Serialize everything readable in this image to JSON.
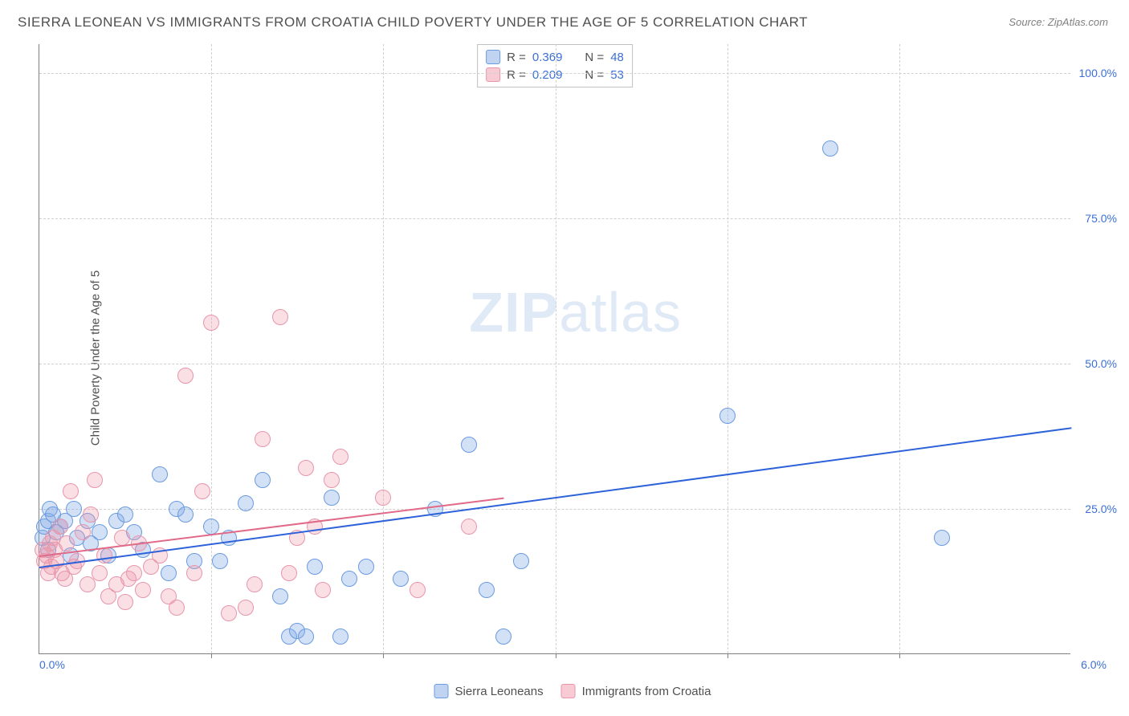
{
  "title": "SIERRA LEONEAN VS IMMIGRANTS FROM CROATIA CHILD POVERTY UNDER THE AGE OF 5 CORRELATION CHART",
  "source_label": "Source:",
  "source_value": "ZipAtlas.com",
  "y_axis_label": "Child Poverty Under the Age of 5",
  "watermark_bold": "ZIP",
  "watermark_rest": "atlas",
  "chart": {
    "type": "scatter",
    "xlim": [
      0,
      6
    ],
    "ylim": [
      0,
      105
    ],
    "x_tick_step": 1,
    "y_ticks": [
      25,
      50,
      75,
      100
    ],
    "y_tick_labels": [
      "25.0%",
      "50.0%",
      "75.0%",
      "100.0%"
    ],
    "x_left_label": "0.0%",
    "x_right_label": "6.0%",
    "background_color": "#ffffff",
    "grid_color": "#d0d0d0",
    "axis_color": "#808080",
    "marker_radius": 10,
    "series": [
      {
        "name": "Sierra Leoneans",
        "color_fill": "rgba(130,170,230,0.35)",
        "color_stroke": "#6a9be0",
        "trend_color": "#2e62d9",
        "R": "0.369",
        "N": "48",
        "trend": {
          "x1": 0,
          "y1": 15,
          "x2": 6,
          "y2": 39
        },
        "points": [
          [
            0.02,
            20
          ],
          [
            0.03,
            22
          ],
          [
            0.05,
            23
          ],
          [
            0.05,
            18
          ],
          [
            0.06,
            25
          ],
          [
            0.08,
            24
          ],
          [
            0.1,
            21
          ],
          [
            0.12,
            22
          ],
          [
            0.15,
            23
          ],
          [
            0.18,
            17
          ],
          [
            0.2,
            25
          ],
          [
            0.22,
            20
          ],
          [
            0.28,
            23
          ],
          [
            0.3,
            19
          ],
          [
            0.35,
            21
          ],
          [
            0.4,
            17
          ],
          [
            0.45,
            23
          ],
          [
            0.5,
            24
          ],
          [
            0.55,
            21
          ],
          [
            0.6,
            18
          ],
          [
            0.7,
            31
          ],
          [
            0.75,
            14
          ],
          [
            0.8,
            25
          ],
          [
            0.85,
            24
          ],
          [
            0.9,
            16
          ],
          [
            1.0,
            22
          ],
          [
            1.05,
            16
          ],
          [
            1.1,
            20
          ],
          [
            1.2,
            26
          ],
          [
            1.3,
            30
          ],
          [
            1.4,
            10
          ],
          [
            1.45,
            3
          ],
          [
            1.5,
            4
          ],
          [
            1.55,
            3
          ],
          [
            1.6,
            15
          ],
          [
            1.7,
            27
          ],
          [
            1.75,
            3
          ],
          [
            1.8,
            13
          ],
          [
            1.9,
            15
          ],
          [
            2.1,
            13
          ],
          [
            2.3,
            25
          ],
          [
            2.5,
            36
          ],
          [
            2.6,
            11
          ],
          [
            2.7,
            3
          ],
          [
            2.8,
            16
          ],
          [
            4.0,
            41
          ],
          [
            4.6,
            87
          ],
          [
            5.25,
            20
          ]
        ]
      },
      {
        "name": "Immigrants from Croatia",
        "color_fill": "rgba(240,150,170,0.30)",
        "color_stroke": "#e796aa",
        "trend_color": "#e06a88",
        "R": "0.209",
        "N": "53",
        "trend": {
          "x1": 0,
          "y1": 17,
          "x2": 2.7,
          "y2": 27
        },
        "points": [
          [
            0.02,
            18
          ],
          [
            0.03,
            16
          ],
          [
            0.04,
            17
          ],
          [
            0.05,
            14
          ],
          [
            0.06,
            19
          ],
          [
            0.07,
            15
          ],
          [
            0.08,
            20
          ],
          [
            0.09,
            18
          ],
          [
            0.1,
            16
          ],
          [
            0.12,
            22
          ],
          [
            0.13,
            14
          ],
          [
            0.15,
            13
          ],
          [
            0.16,
            19
          ],
          [
            0.18,
            28
          ],
          [
            0.2,
            15
          ],
          [
            0.22,
            16
          ],
          [
            0.25,
            21
          ],
          [
            0.28,
            12
          ],
          [
            0.3,
            24
          ],
          [
            0.32,
            30
          ],
          [
            0.35,
            14
          ],
          [
            0.38,
            17
          ],
          [
            0.4,
            10
          ],
          [
            0.45,
            12
          ],
          [
            0.48,
            20
          ],
          [
            0.5,
            9
          ],
          [
            0.52,
            13
          ],
          [
            0.55,
            14
          ],
          [
            0.58,
            19
          ],
          [
            0.6,
            11
          ],
          [
            0.65,
            15
          ],
          [
            0.7,
            17
          ],
          [
            0.75,
            10
          ],
          [
            0.8,
            8
          ],
          [
            0.85,
            48
          ],
          [
            0.9,
            14
          ],
          [
            0.95,
            28
          ],
          [
            1.0,
            57
          ],
          [
            1.1,
            7
          ],
          [
            1.2,
            8
          ],
          [
            1.25,
            12
          ],
          [
            1.3,
            37
          ],
          [
            1.4,
            58
          ],
          [
            1.45,
            14
          ],
          [
            1.5,
            20
          ],
          [
            1.55,
            32
          ],
          [
            1.6,
            22
          ],
          [
            1.65,
            11
          ],
          [
            1.7,
            30
          ],
          [
            1.75,
            34
          ],
          [
            2.0,
            27
          ],
          [
            2.2,
            11
          ],
          [
            2.5,
            22
          ]
        ]
      }
    ]
  },
  "r_legend": {
    "R_label": "R =",
    "N_label": "N ="
  },
  "bottom_legend": {
    "items": [
      "Sierra Leoneans",
      "Immigrants from Croatia"
    ]
  }
}
